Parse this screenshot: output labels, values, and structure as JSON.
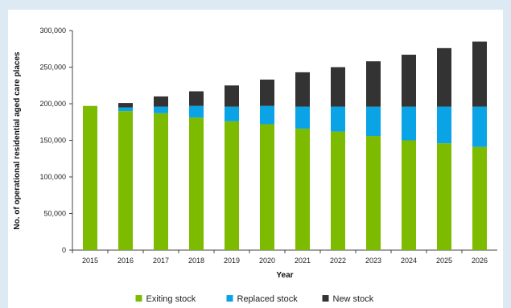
{
  "chart_data": {
    "type": "bar",
    "stacked": true,
    "title": "",
    "xlabel": "Year",
    "ylabel": "No. of operational residential aged care places",
    "categories": [
      "2015",
      "2016",
      "2017",
      "2018",
      "2019",
      "2020",
      "2021",
      "2022",
      "2023",
      "2024",
      "2025",
      "2026"
    ],
    "ylim": [
      0,
      300000
    ],
    "yticks": [
      0,
      50000,
      100000,
      150000,
      200000,
      250000,
      300000
    ],
    "ytick_labels": [
      "0",
      "50,000",
      "100,000",
      "150,000",
      "200,000",
      "250,000",
      "300,000"
    ],
    "grid": false,
    "legend_position": "bottom",
    "series": [
      {
        "name": "Exiting stock",
        "color": "#7dbb00",
        "values": [
          197000,
          190000,
          187000,
          181000,
          176000,
          172000,
          166000,
          162000,
          156000,
          150000,
          146000,
          141000
        ]
      },
      {
        "name": "Replaced stock",
        "color": "#0aa3e6",
        "values": [
          0,
          5000,
          9000,
          16000,
          20000,
          25000,
          30000,
          34000,
          40000,
          46000,
          50000,
          55000
        ]
      },
      {
        "name": "New stock",
        "color": "#333333",
        "values": [
          0,
          6000,
          14000,
          20000,
          29000,
          36000,
          47000,
          54000,
          62000,
          71000,
          80000,
          89000
        ]
      }
    ]
  }
}
